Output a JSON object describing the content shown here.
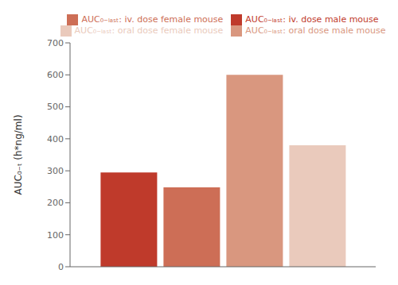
{
  "chart_data": {
    "type": "bar",
    "ylabel": "AUC₀₋ₜ (h*ng/ml)",
    "categories": [
      null
    ],
    "series": [
      {
        "name": "AUC₀₋ₗₐₛₜ: iv. dose male mouse",
        "color": "#BF3A2B",
        "values": [
          295
        ]
      },
      {
        "name": "AUC₀₋ₗₐₛₜ: iv. dose female mouse",
        "color": "#CD6E56",
        "values": [
          248
        ]
      },
      {
        "name": "AUC₀₋ₗₐₛₜ: oral dose male mouse",
        "color": "#D9977F",
        "values": [
          600
        ]
      },
      {
        "name": "AUC₀₋ₗₐₛₜ: oral dose female mouse",
        "color": "#EACABC",
        "values": [
          380
        ]
      }
    ],
    "ylim": [
      0,
      700
    ],
    "yticks": [
      0,
      100,
      200,
      300,
      400,
      500,
      600,
      700
    ],
    "grid": false,
    "legend": "top",
    "tick_labels": "y"
  }
}
